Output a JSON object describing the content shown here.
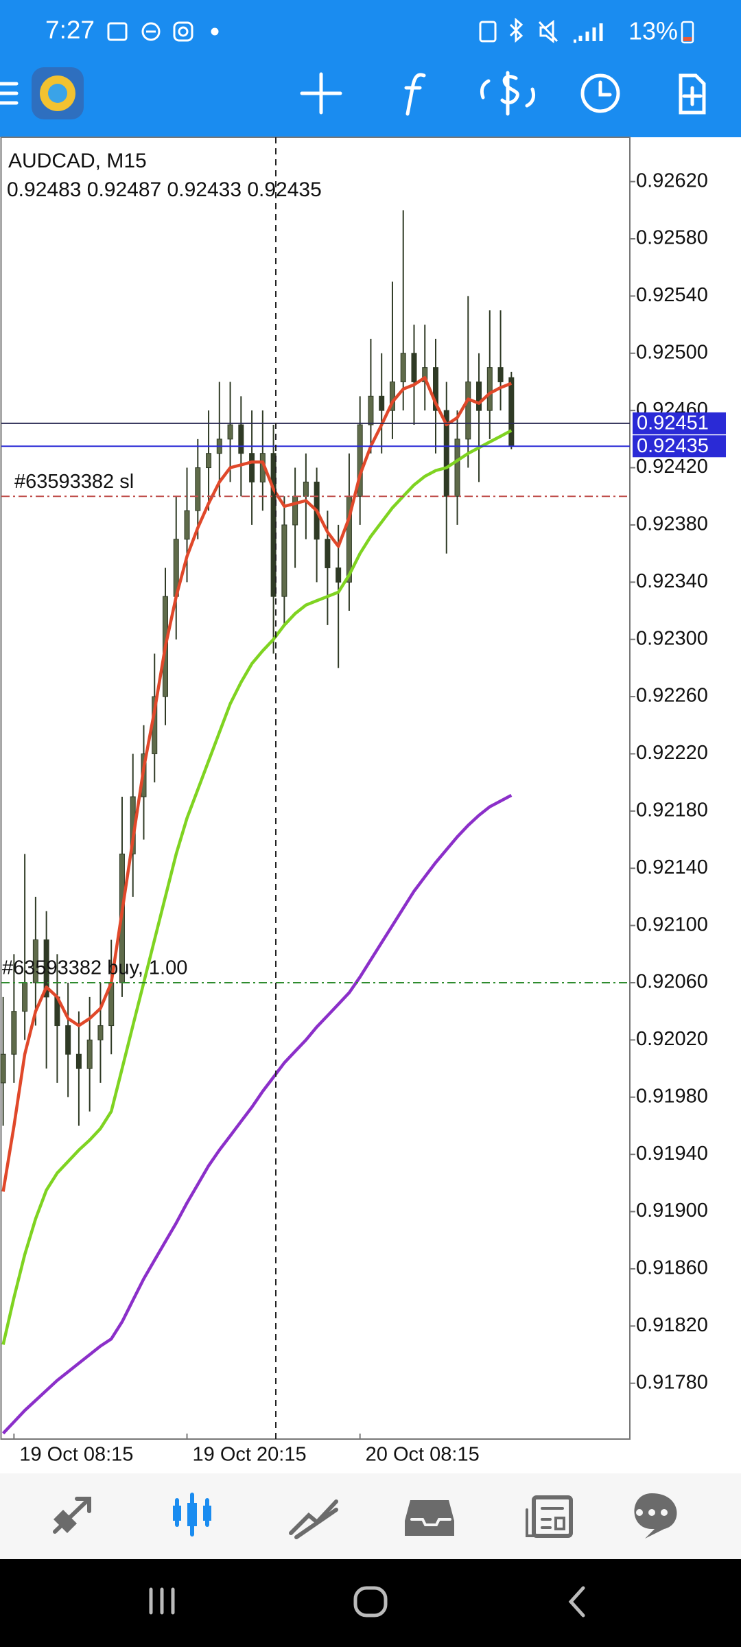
{
  "status_bar": {
    "time": "7:27",
    "battery": "13%"
  },
  "chart_data": {
    "type": "candlestick",
    "title": "AUDCAD, M15",
    "ohlc_label": "0.92483 0.92487 0.92433 0.92435",
    "categories": [
      null,
      "19 Oct 08:15",
      null,
      null,
      null,
      null,
      null,
      null,
      null,
      null,
      null,
      null,
      null,
      null,
      null,
      null,
      null,
      "19 Oct 20:15",
      null,
      null,
      null,
      null,
      null,
      null,
      null,
      null,
      null,
      null,
      null,
      null,
      null,
      null,
      null,
      "20 Oct 08:15",
      null,
      null,
      null,
      null,
      null,
      null,
      null,
      null,
      null,
      null,
      null,
      null,
      null,
      null
    ],
    "open": [
      0.9199,
      0.9201,
      0.9204,
      0.9206,
      0.9209,
      0.9205,
      0.9203,
      0.9201,
      0.92,
      0.9202,
      0.9203,
      0.9206,
      0.9215,
      0.9219,
      0.9222,
      0.9226,
      0.9233,
      0.9237,
      0.9239,
      0.9242,
      0.9243,
      0.9244,
      0.9245,
      0.9243,
      0.9241,
      0.9243,
      0.9233,
      0.9238,
      0.924,
      0.9241,
      0.9237,
      0.9235,
      0.9234,
      0.924,
      0.9245,
      0.9247,
      0.9246,
      0.9248,
      0.925,
      0.9248,
      0.9249,
      0.9246,
      0.924,
      0.9244,
      0.9248,
      0.9246,
      0.9249,
      0.92483
    ],
    "high": [
      0.9205,
      0.9208,
      0.9215,
      0.9212,
      0.9211,
      0.9208,
      0.9206,
      0.9204,
      0.9205,
      0.9206,
      0.9209,
      0.9219,
      0.9222,
      0.9224,
      0.9229,
      0.9235,
      0.924,
      0.9242,
      0.9244,
      0.9246,
      0.9248,
      0.9248,
      0.9247,
      0.9246,
      0.9246,
      0.9245,
      0.924,
      0.9242,
      0.9243,
      0.9242,
      0.9239,
      0.9238,
      0.9243,
      0.9247,
      0.9251,
      0.925,
      0.9255,
      0.926,
      0.9252,
      0.9252,
      0.9251,
      0.9248,
      0.9246,
      0.9254,
      0.925,
      0.9253,
      0.9253,
      0.92487
    ],
    "low": [
      0.9196,
      0.9199,
      0.9202,
      0.9203,
      0.92,
      0.9199,
      0.9198,
      0.9196,
      0.9197,
      0.9199,
      0.9201,
      0.9205,
      0.9212,
      0.9216,
      0.922,
      0.9224,
      0.923,
      0.9234,
      0.9237,
      0.9239,
      0.924,
      0.9241,
      0.924,
      0.9238,
      0.9239,
      0.9229,
      0.9231,
      0.9235,
      0.9237,
      0.9234,
      0.9231,
      0.9228,
      0.9232,
      0.9238,
      0.9243,
      0.9243,
      0.9244,
      0.9246,
      0.9245,
      0.9246,
      0.9243,
      0.9236,
      0.9238,
      0.9242,
      0.9241,
      0.9244,
      0.9246,
      0.92433
    ],
    "close": [
      0.9201,
      0.9204,
      0.9206,
      0.9209,
      0.9205,
      0.9203,
      0.9201,
      0.92,
      0.9202,
      0.9203,
      0.9206,
      0.9215,
      0.9219,
      0.9222,
      0.9226,
      0.9233,
      0.9237,
      0.9239,
      0.9242,
      0.9243,
      0.9244,
      0.9245,
      0.9243,
      0.9241,
      0.9243,
      0.9233,
      0.9238,
      0.924,
      0.9241,
      0.9237,
      0.9235,
      0.9234,
      0.924,
      0.9245,
      0.9247,
      0.9246,
      0.9248,
      0.925,
      0.9248,
      0.9249,
      0.9246,
      0.924,
      0.9244,
      0.9248,
      0.9246,
      0.9249,
      0.9248,
      0.92435
    ],
    "candle_color": "#5f6b4a",
    "series": [
      {
        "color": "#8b2fc9",
        "values": [
          0.91745,
          0.91753,
          0.91761,
          0.91768,
          0.91775,
          0.91782,
          0.91788,
          0.91794,
          0.918,
          0.91806,
          0.91811,
          0.91823,
          0.91838,
          0.91853,
          0.91866,
          0.91879,
          0.91892,
          0.91906,
          0.91919,
          0.91932,
          0.91943,
          0.91953,
          0.91963,
          0.91973,
          0.91984,
          0.91994,
          0.92004,
          0.92012,
          0.9202,
          0.92029,
          0.92037,
          0.92045,
          0.92053,
          0.92064,
          0.92076,
          0.92088,
          0.921,
          0.92112,
          0.92124,
          0.92134,
          0.92144,
          0.92153,
          0.92162,
          0.9217,
          0.92177,
          0.92183,
          0.92187,
          0.92191
        ]
      },
      {
        "color": "#7fd321",
        "values": [
          0.91807,
          0.9184,
          0.9187,
          0.91895,
          0.91915,
          0.91927,
          0.91935,
          0.91943,
          0.9195,
          0.91958,
          0.9197,
          0.92,
          0.9203,
          0.9206,
          0.9209,
          0.9212,
          0.9215,
          0.92175,
          0.92195,
          0.92215,
          0.92235,
          0.92255,
          0.9227,
          0.92283,
          0.92292,
          0.923,
          0.9231,
          0.92318,
          0.92324,
          0.92327,
          0.9233,
          0.92333,
          0.92345,
          0.9236,
          0.92372,
          0.92382,
          0.92392,
          0.924,
          0.92408,
          0.92414,
          0.92418,
          0.9242,
          0.92425,
          0.9243,
          0.92434,
          0.92438,
          0.92442,
          0.92446
        ]
      },
      {
        "color": "#e0482a",
        "values": [
          0.91914,
          0.9196,
          0.9201,
          0.9204,
          0.92057,
          0.9205,
          0.92035,
          0.9203,
          0.92035,
          0.92042,
          0.9206,
          0.9211,
          0.9216,
          0.9221,
          0.9225,
          0.92295,
          0.9233,
          0.92358,
          0.92378,
          0.92395,
          0.9241,
          0.9242,
          0.92422,
          0.92424,
          0.92424,
          0.92405,
          0.92393,
          0.92395,
          0.92397,
          0.9239,
          0.92375,
          0.92365,
          0.92385,
          0.92415,
          0.92435,
          0.9245,
          0.92466,
          0.92475,
          0.92478,
          0.92483,
          0.92465,
          0.9245,
          0.92455,
          0.92468,
          0.92465,
          0.92472,
          0.92476,
          0.92479
        ]
      }
    ],
    "ylim": [
      0.91741,
      0.92651
    ],
    "yticks": [
      {
        "value": 0.9262,
        "label": "0.92620"
      },
      {
        "value": 0.9258,
        "label": "0.92580"
      },
      {
        "value": 0.9254,
        "label": "0.92540"
      },
      {
        "value": 0.925,
        "label": "0.92500"
      },
      {
        "value": 0.9246,
        "label": "0.92460"
      },
      {
        "value": 0.9242,
        "label": "0.92420"
      },
      {
        "value": 0.9238,
        "label": "0.92380"
      },
      {
        "value": 0.9234,
        "label": "0.92340"
      },
      {
        "value": 0.923,
        "label": "0.92300"
      },
      {
        "value": 0.9226,
        "label": "0.92260"
      },
      {
        "value": 0.9222,
        "label": "0.92220"
      },
      {
        "value": 0.9218,
        "label": "0.92180"
      },
      {
        "value": 0.9214,
        "label": "0.92140"
      },
      {
        "value": 0.921,
        "label": "0.92100"
      },
      {
        "value": 0.9206,
        "label": "0.92060"
      },
      {
        "value": 0.9202,
        "label": "0.92020"
      },
      {
        "value": 0.9198,
        "label": "0.91980"
      },
      {
        "value": 0.9194,
        "label": "0.91940"
      },
      {
        "value": 0.919,
        "label": "0.91900"
      },
      {
        "value": 0.9186,
        "label": "0.91860"
      },
      {
        "value": 0.9182,
        "label": "0.91820"
      },
      {
        "value": 0.9178,
        "label": "0.91780"
      }
    ],
    "levels": [
      {
        "value": 0.92451,
        "label": "0.92451",
        "color": "#2b2b55"
      },
      {
        "value": 0.92435,
        "label": "0.92435",
        "color": "#2a2ad6"
      }
    ],
    "orders": [
      {
        "value": 0.924,
        "label": "#63593382 sl",
        "color": "#c0504d"
      },
      {
        "value": 0.9206,
        "label": "#63593382 buy, 1.00",
        "color": "#2e8b2e"
      }
    ]
  }
}
